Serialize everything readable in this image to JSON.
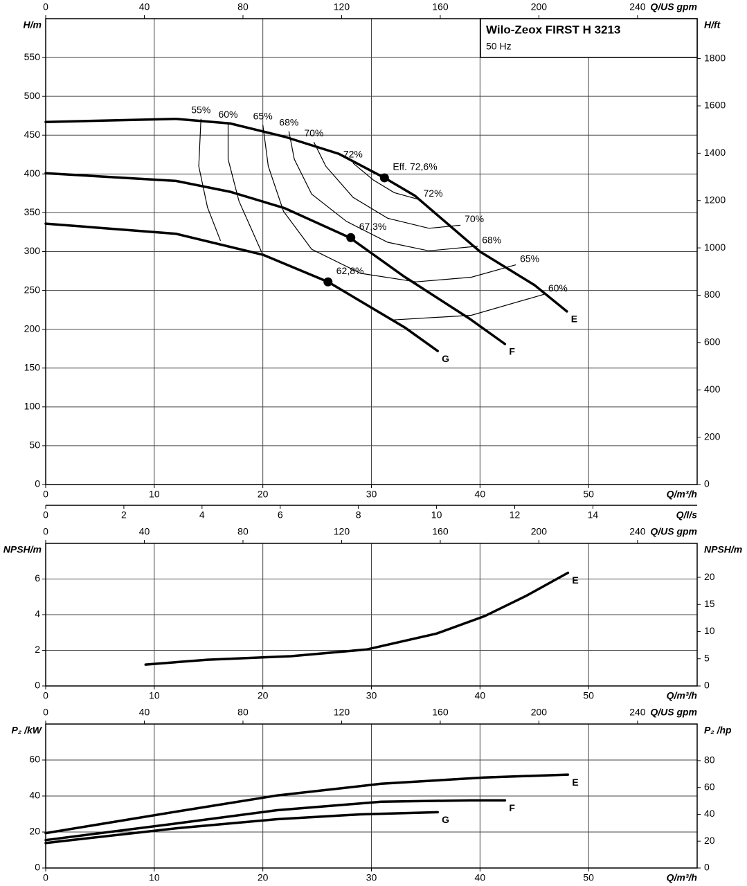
{
  "chart_data": [
    {
      "type": "line",
      "title": "Wilo-Zeox FIRST H 3213",
      "subtitle": "50 Hz",
      "xlabel": "Q/m³/h",
      "xlim": [
        0,
        60
      ],
      "xticks": [
        0,
        10,
        20,
        30,
        40,
        50
      ],
      "x2label": "Q/US gpm",
      "x2lim": [
        0,
        264.17
      ],
      "x2ticks": [
        0,
        40,
        80,
        120,
        160,
        200,
        240
      ],
      "x3label": "Q/l/s",
      "x3lim": [
        0,
        16.667
      ],
      "x3ticks": [
        0,
        2,
        4,
        6,
        8,
        10,
        12,
        14
      ],
      "ylabel": "H/m",
      "ylim": [
        0,
        600
      ],
      "yticks": [
        0,
        50,
        100,
        150,
        200,
        250,
        300,
        350,
        400,
        450,
        500,
        550
      ],
      "y2label": "H/ft",
      "y2lim": [
        0,
        1968.5
      ],
      "y2ticks": [
        0,
        200,
        400,
        600,
        800,
        1000,
        1200,
        1400,
        1600,
        1800
      ],
      "grid": true,
      "series": [
        {
          "name": "E",
          "color": "#000000",
          "x": [
            0,
            12,
            17,
            22,
            27,
            31.2,
            34,
            40,
            45,
            48
          ],
          "values": [
            467,
            471,
            465,
            448,
            426,
            395,
            372,
            300,
            257,
            223
          ]
        },
        {
          "name": "F",
          "color": "#000000",
          "x": [
            0,
            12,
            17,
            22,
            28,
            33,
            39,
            42.3
          ],
          "values": [
            401,
            391,
            377,
            356,
            318,
            268,
            214,
            181
          ]
        },
        {
          "name": "G",
          "color": "#000000",
          "x": [
            0,
            12,
            20,
            26,
            33.1,
            36.1
          ],
          "values": [
            336,
            323,
            296,
            261,
            202,
            172
          ]
        }
      ],
      "efficiency_lines": [
        {
          "labels": [
            "55%"
          ],
          "q": [
            14.3,
            14.1,
            14.9,
            16.1
          ],
          "h": [
            471,
            410,
            357,
            314
          ]
        },
        {
          "labels": [
            "60%",
            "60%"
          ],
          "q": [
            16.8,
            16.8,
            17.8,
            19.9,
            null,
            32,
            39.2,
            45.9
          ],
          "h": [
            465,
            419,
            365,
            299,
            null,
            212,
            218,
            245
          ]
        },
        {
          "labels": [
            "65%",
            "65%"
          ],
          "q": [
            20,
            20.5,
            21.9,
            24.5,
            29,
            34.1,
            39.2,
            43.3
          ],
          "h": [
            463,
            410,
            352,
            303,
            272,
            261,
            267,
            283
          ]
        },
        {
          "labels": [
            "68%",
            "68%"
          ],
          "q": [
            22.4,
            22.9,
            24.5,
            27.7,
            31.5,
            35.3,
            39.8
          ],
          "h": [
            455,
            419,
            374,
            339,
            312,
            301,
            307
          ]
        },
        {
          "labels": [
            "70%",
            "70%"
          ],
          "q": [
            24.7,
            25.8,
            28.3,
            31.5,
            35.3,
            38.2
          ],
          "h": [
            441,
            410,
            370,
            343,
            330,
            334
          ]
        },
        {
          "labels": [
            "72%",
            "72%"
          ],
          "q": [
            28.3,
            30.2,
            32.1,
            34.4
          ],
          "h": [
            414,
            392,
            376,
            367
          ]
        }
      ],
      "bep": [
        {
          "label": "Eff. 72,6%",
          "q": 31.2,
          "h": 395
        },
        {
          "label": "67,3%",
          "q": 28.1,
          "h": 318
        },
        {
          "label": "62,8%",
          "q": 26,
          "h": 261
        }
      ]
    },
    {
      "type": "line",
      "xlabel": "Q/m³/h",
      "xlim": [
        0,
        60
      ],
      "xticks": [
        0,
        10,
        20,
        30,
        40,
        50
      ],
      "x2label": "Q/US gpm",
      "x2lim": [
        0,
        264.17
      ],
      "x2ticks": [
        0,
        40,
        80,
        120,
        160,
        200,
        240
      ],
      "ylabel": "NPSH/m",
      "ylim": [
        0,
        8
      ],
      "yticks": [
        0,
        2,
        4,
        6
      ],
      "y2label": "NPSH/m",
      "y2lim": [
        0,
        26.25
      ],
      "y2ticks": [
        0,
        5,
        10,
        15,
        20
      ],
      "grid": true,
      "series": [
        {
          "name": "E",
          "color": "#000000",
          "x": [
            9.2,
            14.9,
            22.6,
            29.6,
            36,
            40.4,
            44.3,
            48.1
          ],
          "values": [
            1.2,
            1.47,
            1.67,
            2.05,
            2.94,
            3.91,
            5.07,
            6.35
          ]
        }
      ]
    },
    {
      "type": "line",
      "xlabel": "Q/m³/h",
      "xlim": [
        0,
        60
      ],
      "xticks": [
        0,
        10,
        20,
        30,
        40,
        50
      ],
      "x2label": "Q/US gpm",
      "x2lim": [
        0,
        264.17
      ],
      "x2ticks": [
        0,
        40,
        80,
        120,
        160,
        200,
        240
      ],
      "ylabel": "P₂ /kW",
      "ylim": [
        0,
        80
      ],
      "yticks": [
        0,
        20,
        40,
        60
      ],
      "y2label": "P₂ /hp",
      "y2lim": [
        0,
        107.28
      ],
      "y2ticks": [
        0,
        20,
        40,
        60,
        80
      ],
      "grid": true,
      "series": [
        {
          "name": "E",
          "color": "#000000",
          "x": [
            0,
            12.1,
            21.3,
            30.9,
            40.4,
            48.1
          ],
          "values": [
            19.4,
            31.4,
            40.3,
            46.8,
            50.3,
            51.9
          ]
        },
        {
          "name": "F",
          "color": "#000000",
          "x": [
            0,
            12.1,
            21.3,
            30.9,
            39.2,
            42.3
          ],
          "values": [
            15.5,
            24.8,
            32.1,
            36.8,
            37.6,
            37.6
          ]
        },
        {
          "name": "G",
          "color": "#000000",
          "x": [
            0,
            12.1,
            21.3,
            29,
            36.1
          ],
          "values": [
            13.9,
            22.1,
            27.1,
            29.8,
            31
          ]
        }
      ]
    }
  ]
}
